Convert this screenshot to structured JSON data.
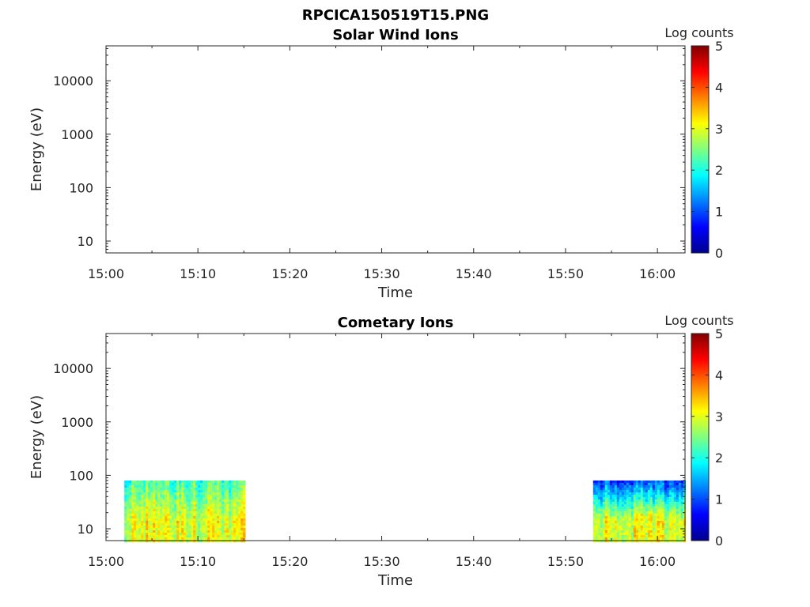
{
  "figure_title": "RPCICA150519T15.PNG",
  "chart_data": [
    {
      "type": "heatmap",
      "title": "Solar Wind Ions",
      "xlabel": "Time",
      "ylabel": "Energy (eV)",
      "x_ticks": [
        "15:00",
        "15:10",
        "15:20",
        "15:30",
        "15:40",
        "15:50",
        "16:00"
      ],
      "xlim": [
        "15:00",
        "16:03"
      ],
      "y_scale": "log",
      "y_ticks": [
        10,
        100,
        1000,
        10000
      ],
      "ylim": [
        6,
        45000
      ],
      "grid": false,
      "colorbar": {
        "label": "Log counts",
        "range": [
          0,
          5
        ],
        "ticks": [
          0,
          1,
          2,
          3,
          4,
          5
        ],
        "colormap": "jet"
      },
      "data_blocks": []
    },
    {
      "type": "heatmap",
      "title": "Cometary Ions",
      "xlabel": "Time",
      "ylabel": "Energy (eV)",
      "x_ticks": [
        "15:00",
        "15:10",
        "15:20",
        "15:30",
        "15:40",
        "15:50",
        "16:00"
      ],
      "xlim": [
        "15:00",
        "16:03"
      ],
      "y_scale": "log",
      "y_ticks": [
        10,
        100,
        1000,
        10000
      ],
      "ylim": [
        6,
        45000
      ],
      "grid": false,
      "colorbar": {
        "label": "Log counts",
        "range": [
          0,
          5
        ],
        "ticks": [
          0,
          1,
          2,
          3,
          4,
          5
        ],
        "colormap": "jet"
      },
      "data_blocks": [
        {
          "t_start": "15:02",
          "t_end": "15:15",
          "e_min": 6,
          "e_max": 80,
          "log_counts_low_energy": 3.0,
          "log_counts_high_energy": 2.2
        },
        {
          "t_start": "15:53",
          "t_end": "16:03",
          "e_min": 6,
          "e_max": 80,
          "log_counts_low_energy": 3.0,
          "log_counts_high_energy": 1.0
        }
      ]
    }
  ]
}
